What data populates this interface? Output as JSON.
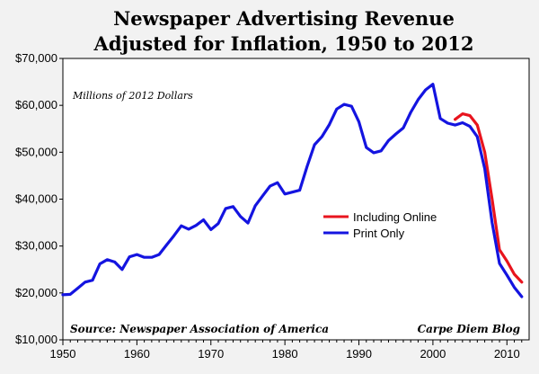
{
  "chart_data": {
    "type": "line",
    "title_line1": "Newspaper Advertising Revenue",
    "title_line2": "Adjusted for Inflation, 1950 to 2012",
    "units_note": "Millions of 2012 Dollars",
    "source": "Source: Newspaper Association of America",
    "credit": "Carpe Diem Blog",
    "xlim": [
      1950,
      2013
    ],
    "ylim": [
      10000,
      70000
    ],
    "x_ticks": [
      1950,
      1960,
      1970,
      1980,
      1990,
      2000,
      2010
    ],
    "x_tick_labels": [
      "1950",
      "1960",
      "1970",
      "1980",
      "1990",
      "2000",
      "2010"
    ],
    "y_ticks": [
      10000,
      20000,
      30000,
      40000,
      50000,
      60000,
      70000
    ],
    "y_tick_labels": [
      "$10,000",
      "$20,000",
      "$30,000",
      "$40,000",
      "$50,000",
      "$60,000",
      "$70,000"
    ],
    "legend": {
      "position": "center-right"
    },
    "series": [
      {
        "name": "Including Online",
        "color": "#e8141e",
        "x": [
          2003,
          2004,
          2005,
          2006,
          2007,
          2008,
          2009,
          2010,
          2011,
          2012
        ],
        "values": [
          57000,
          58200,
          57800,
          55800,
          50000,
          40000,
          29200,
          26800,
          24000,
          22300
        ]
      },
      {
        "name": "Print Only",
        "color": "#1414e0",
        "x": [
          1950,
          1951,
          1952,
          1953,
          1954,
          1955,
          1956,
          1957,
          1958,
          1959,
          1960,
          1961,
          1962,
          1963,
          1964,
          1965,
          1966,
          1967,
          1968,
          1969,
          1970,
          1971,
          1972,
          1973,
          1974,
          1975,
          1976,
          1977,
          1978,
          1979,
          1980,
          1981,
          1982,
          1983,
          1984,
          1985,
          1986,
          1987,
          1988,
          1989,
          1990,
          1991,
          1992,
          1993,
          1994,
          1995,
          1996,
          1997,
          1998,
          1999,
          2000,
          2001,
          2002,
          2003,
          2004,
          2005,
          2006,
          2007,
          2008,
          2009,
          2010,
          2011,
          2012
        ],
        "values": [
          19600,
          19700,
          21000,
          22300,
          22700,
          26200,
          27100,
          26600,
          25000,
          27700,
          28200,
          27600,
          27600,
          28200,
          30200,
          32200,
          34300,
          33600,
          34400,
          35600,
          33500,
          34800,
          38000,
          38400,
          36300,
          34900,
          38600,
          40700,
          42800,
          43500,
          41100,
          41500,
          41900,
          47000,
          51600,
          53300,
          55900,
          59200,
          60200,
          59800,
          56500,
          51000,
          49900,
          50300,
          52500,
          53900,
          55200,
          58500,
          61200,
          63300,
          64500,
          57200,
          56200,
          55800,
          56300,
          55500,
          53300,
          46500,
          35000,
          26300,
          23800,
          21200,
          19200
        ]
      }
    ]
  }
}
